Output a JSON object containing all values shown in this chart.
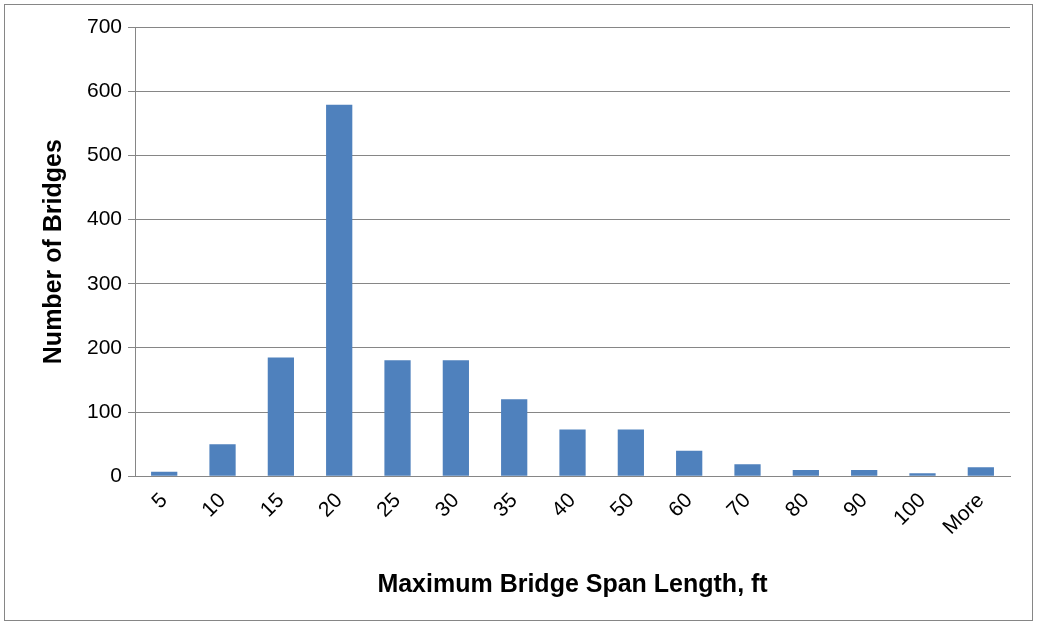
{
  "chart_data": {
    "type": "bar",
    "xlabel": "Maximum Bridge Span Length, ft",
    "ylabel": "Number of Bridges",
    "categories": [
      "5",
      "10",
      "15",
      "20",
      "25",
      "30",
      "35",
      "40",
      "50",
      "60",
      "70",
      "80",
      "90",
      "100",
      "More"
    ],
    "values": [
      7,
      50,
      185,
      579,
      181,
      181,
      120,
      73,
      73,
      40,
      19,
      10,
      10,
      5,
      14
    ],
    "color": "#4f81bd",
    "ylim": [
      0,
      700
    ],
    "yticks": [
      0,
      100,
      200,
      300,
      400,
      500,
      600,
      700
    ],
    "grid": "y",
    "legend": false
  }
}
